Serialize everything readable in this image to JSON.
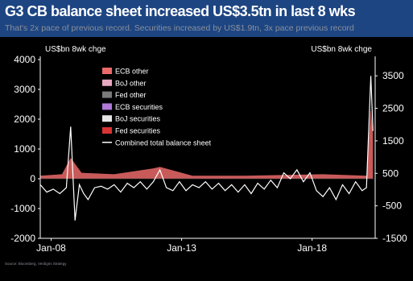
{
  "header": {
    "title": "G3 CB balance sheet increased US$3.5tn in last 8 wks",
    "subtitle": "That's 2x pace of previous record. Securities increased by US$1.9tn, 3x pace previous record"
  },
  "footer": {
    "source": "Source: Bloomberg, Verdigris Strategy"
  },
  "colors": {
    "background": "#000000",
    "header_bg": "#1d4582",
    "axis": "#ffffff",
    "ecb_other": "#ec6a6a",
    "boj_other": "#e8a9c0",
    "fed_other": "#7a7a7a",
    "ecb_securities": "#b07ad8",
    "boj_securities": "#e6e6e6",
    "fed_securities": "#d93434",
    "total_line": "#ffffff"
  },
  "chart_data": {
    "type": "area",
    "left_axis_label": "US$bn 8wk chge",
    "right_axis_label": "US$bn 8wk chge",
    "ylim_left": [
      -2000,
      4000
    ],
    "yticks_left": [
      "4000",
      "3000",
      "2000",
      "1000",
      "0",
      "-1000",
      "-2000"
    ],
    "ylim_right": [
      -1500,
      4000
    ],
    "yticks_right": [
      "3500",
      "2500",
      "1500",
      "500",
      "-500",
      "-1500"
    ],
    "x_ticks": [
      "Jan-08",
      "Jan-13",
      "Jan-18"
    ],
    "xlim": [
      "2007-08",
      "2020-06"
    ],
    "grid": false,
    "legend_position": "top-left",
    "series": [
      {
        "name": "ECB other",
        "color_key": "ecb_other",
        "style": "area"
      },
      {
        "name": "BoJ other",
        "color_key": "boj_other",
        "style": "area"
      },
      {
        "name": "Fed other",
        "color_key": "fed_other",
        "style": "area"
      },
      {
        "name": "ECB securities",
        "color_key": "ecb_securities",
        "style": "area"
      },
      {
        "name": "BoJ securities",
        "color_key": "boj_securities",
        "style": "area"
      },
      {
        "name": "Fed securities",
        "color_key": "fed_securities",
        "style": "area"
      },
      {
        "name": "Combined total balance sheet",
        "color_key": "total_line",
        "style": "line"
      }
    ],
    "combined_total_left_axis": {
      "x": [
        "2007-08",
        "2007-11",
        "2008-02",
        "2008-05",
        "2008-08",
        "2008-10",
        "2008-12",
        "2009-02",
        "2009-04",
        "2009-06",
        "2009-09",
        "2009-12",
        "2010-03",
        "2010-06",
        "2010-09",
        "2010-12",
        "2011-03",
        "2011-06",
        "2011-09",
        "2011-12",
        "2012-03",
        "2012-06",
        "2012-09",
        "2012-12",
        "2013-03",
        "2013-06",
        "2013-09",
        "2013-12",
        "2014-03",
        "2014-06",
        "2014-09",
        "2014-12",
        "2015-03",
        "2015-06",
        "2015-09",
        "2015-12",
        "2016-03",
        "2016-06",
        "2016-09",
        "2016-12",
        "2017-03",
        "2017-06",
        "2017-09",
        "2017-12",
        "2018-03",
        "2018-06",
        "2018-09",
        "2018-12",
        "2019-03",
        "2019-06",
        "2019-09",
        "2019-12",
        "2020-02",
        "2020-04",
        "2020-05"
      ],
      "y": [
        -200,
        -450,
        -350,
        -500,
        -300,
        1750,
        -1400,
        -200,
        -500,
        -700,
        -300,
        -250,
        -350,
        -200,
        -450,
        -150,
        -300,
        -100,
        -350,
        -100,
        300,
        -300,
        -400,
        -100,
        -400,
        -200,
        -300,
        -100,
        -350,
        -150,
        -400,
        -200,
        -450,
        -200,
        -500,
        -150,
        -350,
        -50,
        -300,
        200,
        0,
        300,
        -100,
        200,
        -400,
        -600,
        -300,
        -700,
        -200,
        -500,
        -100,
        -400,
        -300,
        3450,
        1600
      ]
    },
    "ecb_other": {
      "x": [
        "2007-08",
        "2008-06",
        "2008-10",
        "2009-03",
        "2010-06",
        "2011-12",
        "2012-03",
        "2013-06",
        "2015-06",
        "2018-06",
        "2020-02",
        "2020-04",
        "2020-05"
      ],
      "y": [
        100,
        150,
        700,
        200,
        150,
        350,
        400,
        100,
        100,
        150,
        100,
        2350,
        1500
      ]
    }
  }
}
